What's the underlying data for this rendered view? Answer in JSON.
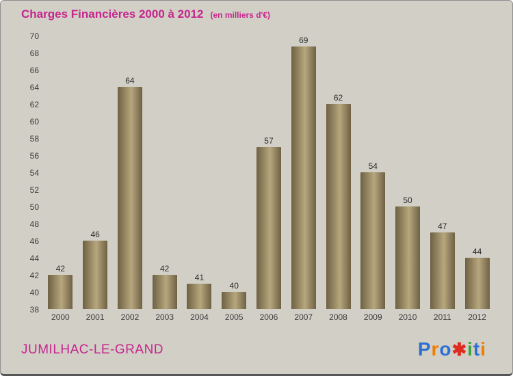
{
  "header": {
    "title": "Charges Financières 2000 à 2012",
    "subtitle": "(en milliers d'€)"
  },
  "footer": {
    "place": "JUMILHAC-LE-GRAND"
  },
  "logo": {
    "name": "Proxiti",
    "letters": [
      {
        "ch": "P",
        "color": "#2d6fd2",
        "name": "logo-letter-p"
      },
      {
        "ch": "r",
        "color": "#f07d00",
        "name": "logo-letter-r"
      },
      {
        "ch": "o",
        "color": "#2d6fd2",
        "name": "logo-letter-o"
      },
      {
        "ch": "✱",
        "color": "#e02b20",
        "star": true,
        "name": "logo-star-x"
      },
      {
        "ch": "i",
        "color": "#3ba43a",
        "name": "logo-letter-i1"
      },
      {
        "ch": "t",
        "color": "#2d6fd2",
        "name": "logo-letter-t"
      },
      {
        "ch": "i",
        "color": "#f07d00",
        "name": "logo-letter-i2"
      }
    ]
  },
  "colors": {
    "background": "#d1cfc6",
    "pink": "#c7258d",
    "tick_color": "#3c3c3c",
    "value_color": "#2b2b2b",
    "bar_dark": "#6e6144",
    "bar_mid": "#a5966e",
    "bar_light": "#b7a77e"
  },
  "chart_data": {
    "type": "bar",
    "title": "Charges Financières 2000 à 2012",
    "subtitle": "(en milliers d'€)",
    "categories": [
      "2000",
      "2001",
      "2002",
      "2003",
      "2004",
      "2005",
      "2006",
      "2007",
      "2008",
      "2009",
      "2010",
      "2011",
      "2012"
    ],
    "values": [
      42,
      46,
      64,
      42,
      41,
      40,
      57,
      69,
      62,
      54,
      50,
      47,
      44
    ],
    "xlabel": "",
    "ylabel": "",
    "ylim": [
      38,
      70
    ],
    "ytick_step": 2,
    "grid": false,
    "legend": false,
    "data_labels": true
  }
}
